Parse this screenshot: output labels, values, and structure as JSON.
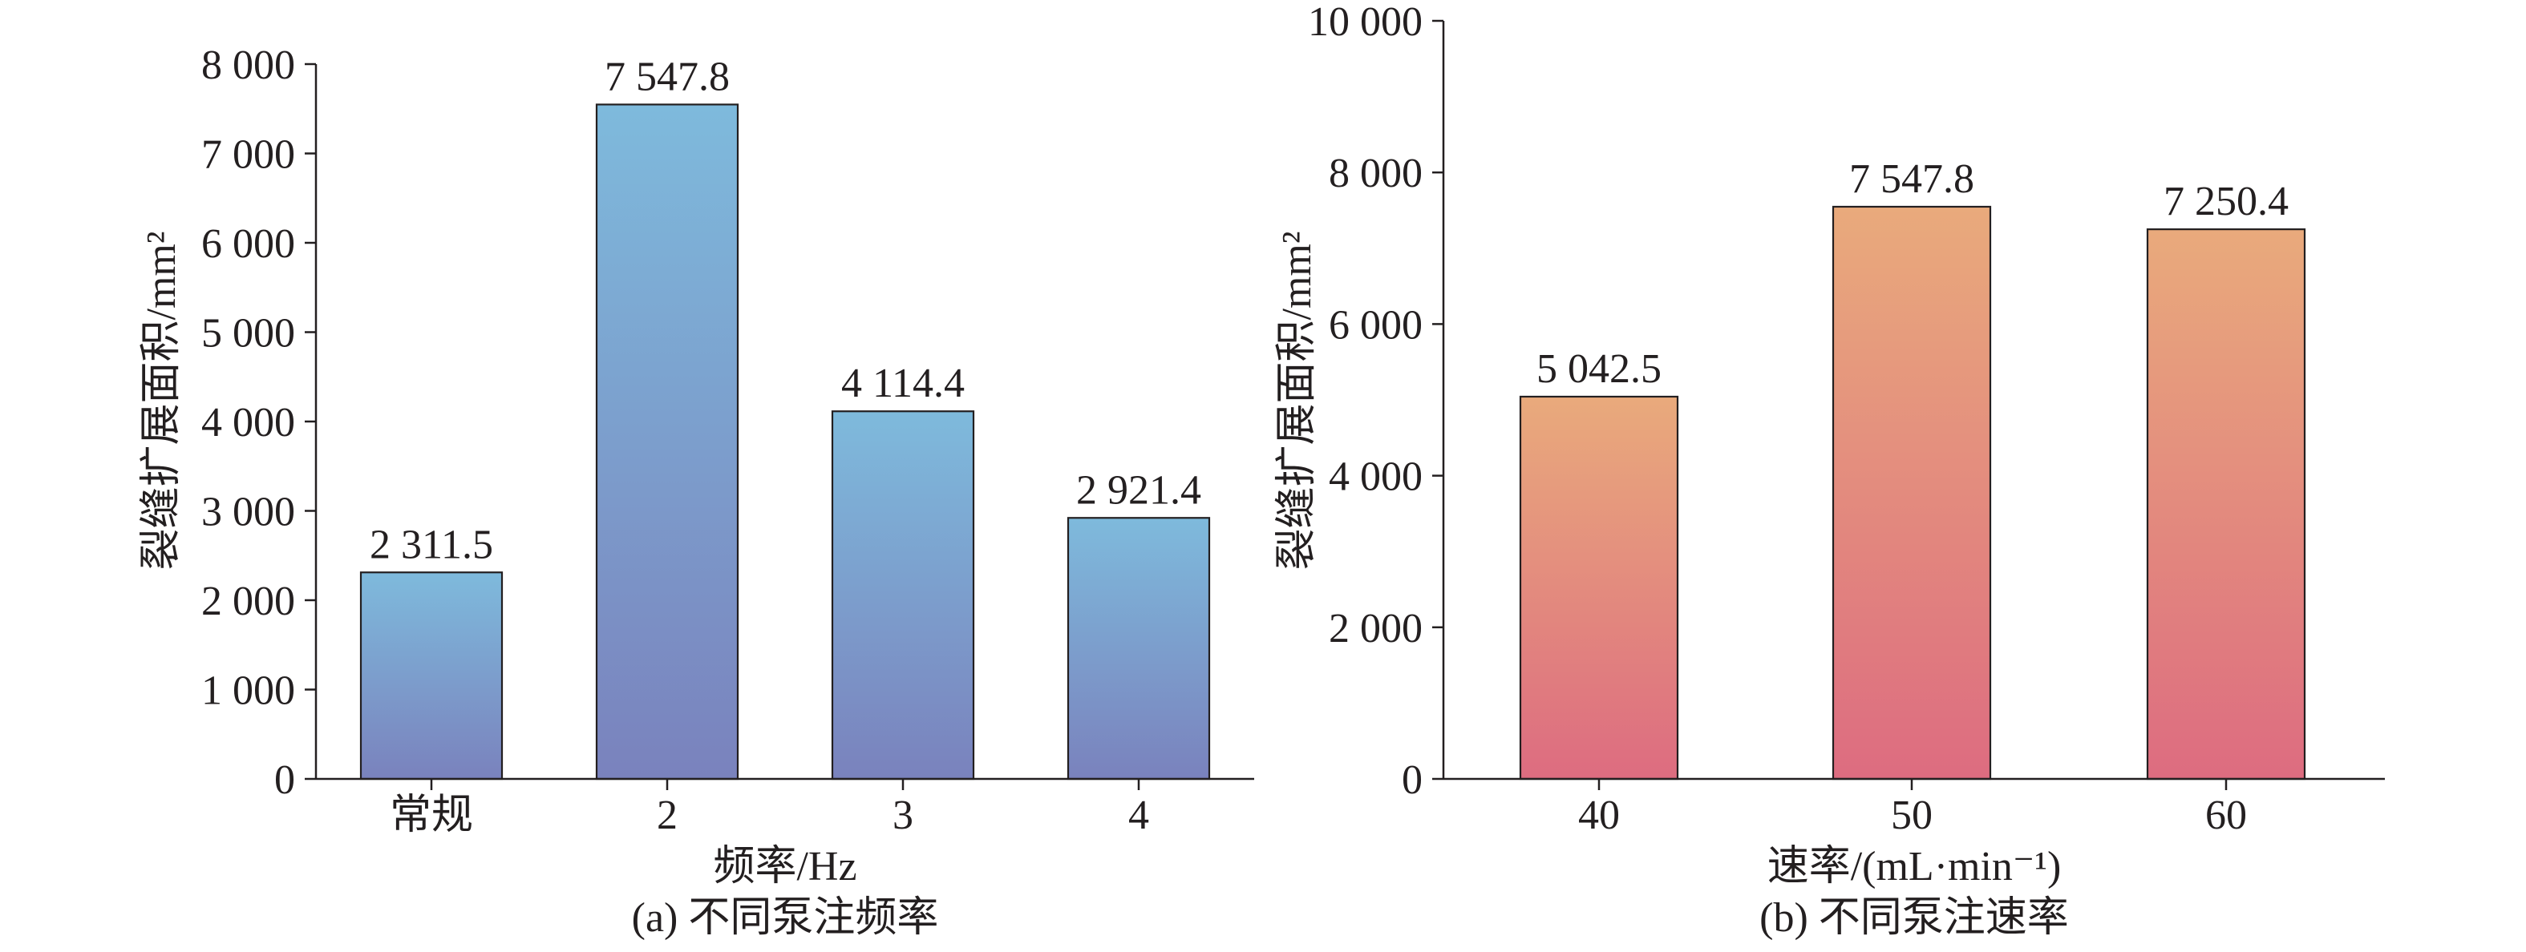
{
  "chart_data": [
    {
      "type": "bar",
      "categories": [
        "常规",
        "2",
        "3",
        "4"
      ],
      "values": [
        2311.5,
        7547.8,
        4114.4,
        2921.4
      ],
      "value_labels": [
        "2 311.5",
        "7 547.8",
        "4 114.4",
        "2 921.4"
      ],
      "xlabel": "频率/Hz",
      "ylabel": "裂缝扩展面积/mm²",
      "caption": "(a) 不同泵注频率",
      "ylim": [
        0,
        8000
      ],
      "yticks": [
        0,
        1000,
        2000,
        3000,
        4000,
        5000,
        6000,
        7000,
        8000
      ],
      "ytick_labels": [
        "0",
        "1 000",
        "2 000",
        "3 000",
        "4 000",
        "5 000",
        "6 000",
        "7 000",
        "8 000"
      ],
      "grid": false,
      "colors": {
        "bar_top": "#7EBADC",
        "bar_bottom": "#7A82BD",
        "edge": "#231F20"
      }
    },
    {
      "type": "bar",
      "categories": [
        "40",
        "50",
        "60"
      ],
      "values": [
        5042.5,
        7547.8,
        7250.4
      ],
      "value_labels": [
        "5 042.5",
        "7 547.8",
        "7 250.4"
      ],
      "xlabel": "速率/(mL·min⁻¹)",
      "ylabel": "裂缝扩展面积/mm²",
      "caption": "(b) 不同泵注速率",
      "ylim": [
        0,
        10000
      ],
      "yticks": [
        0,
        2000,
        4000,
        6000,
        8000,
        10000
      ],
      "ytick_labels": [
        "0",
        "2 000",
        "4 000",
        "6 000",
        "8 000",
        "10 000"
      ],
      "grid": false,
      "colors": {
        "bar_top": "#E9AA7C",
        "bar_bottom": "#DD6C80",
        "edge": "#231F20"
      }
    }
  ]
}
